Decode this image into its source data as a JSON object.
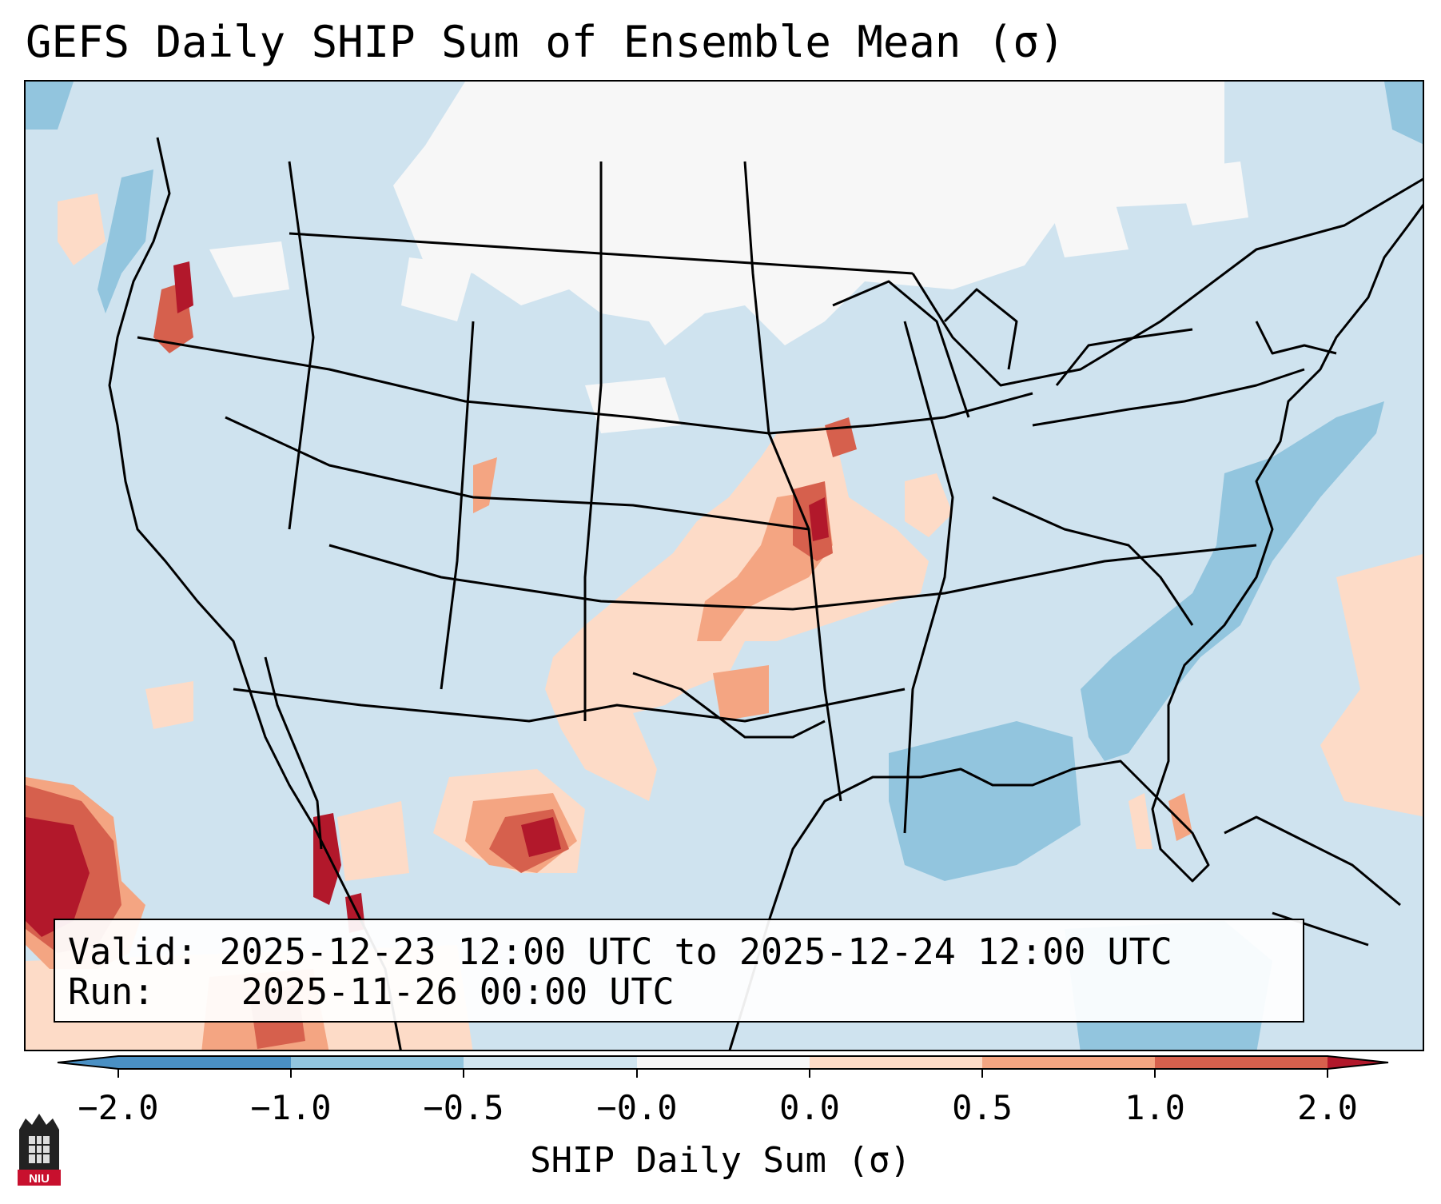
{
  "title": "GEFS Daily SHIP Sum of Ensemble Mean (σ)",
  "info": {
    "valid_label": "Valid:",
    "valid_value": "2025-12-23 12:00 UTC to 2025-12-24 12:00 UTC",
    "run_label": "Run:",
    "run_value": "2025-11-26 00:00 UTC"
  },
  "colorbar": {
    "label": "SHIP Daily Sum (σ)",
    "ticks": [
      "−2.0",
      "−1.0",
      "−0.5",
      "−0.0",
      "0.0",
      "0.5",
      "1.0",
      "2.0"
    ],
    "colors": [
      "#4a90c4",
      "#92c5de",
      "#d1e5f0",
      "#f7f7f7",
      "#fddbc7",
      "#f4a582",
      "#d6604d",
      "#b2182b"
    ]
  },
  "logo_text": "NIU"
}
